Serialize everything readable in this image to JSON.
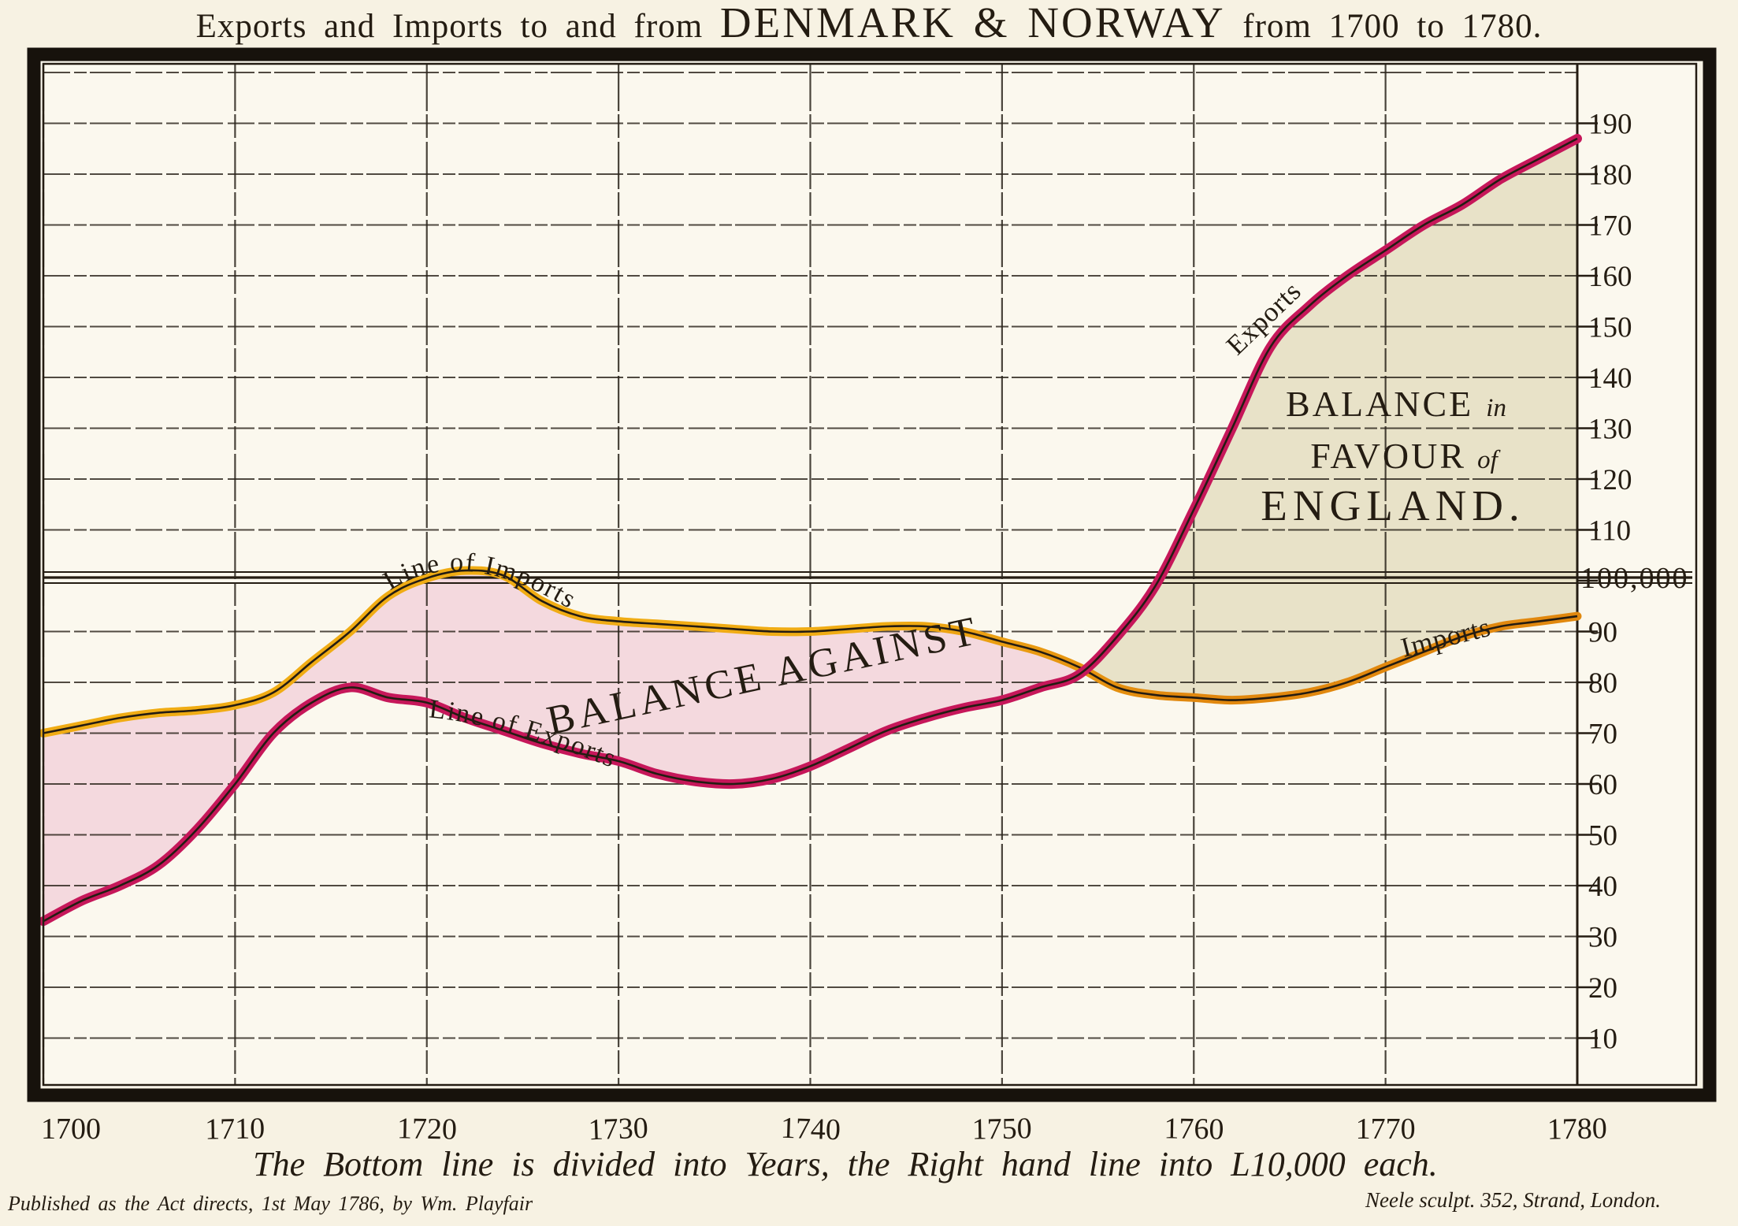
{
  "title": {
    "part1": "Exports and Imports to and from ",
    "emphasis": "DENMARK & NORWAY",
    "part2": " from 1700 to 1780."
  },
  "captions": {
    "bottom": "The Bottom line is divided into Years, the Right hand line into L10,000 each.",
    "published": "Published as the Act directs, 1st May 1786, by Wm. Playfair",
    "engraver": "Neele sculpt. 352, Strand, London."
  },
  "labels": {
    "line_of_imports": "Line of Imports",
    "line_of_exports": "Line of Exports",
    "balance_against": "BALANCE  AGAINST",
    "exports_curve": "Exports",
    "imports_curve": "Imports",
    "favour_line1": "BALANCE",
    "favour_line1_small": "in",
    "favour_line2": "FAVOUR",
    "favour_line2_small": "of",
    "favour_line3": "ENGLAND."
  },
  "colors": {
    "page_background": "#f7f2e3",
    "plot_background": "#fbf8ee",
    "ink": "#241c12",
    "imports_yellow": "#F0AC14",
    "imports_orange_right": "#E1880E",
    "exports_crimson": "#C6175A",
    "balance_against_fill": "#F4D9DE",
    "balance_favour_fill": "#E8E2C8"
  },
  "chart_data": {
    "type": "area",
    "title": "Exports and Imports to and from DENMARK & NORWAY from 1700 to 1780.",
    "xlabel": "Years (bottom line divided into years)",
    "ylabel": "L10,000 per division (right hand line)",
    "xlim": [
      1700,
      1780
    ],
    "ylim": [
      0,
      200
    ],
    "x_ticks": [
      1700,
      1710,
      1720,
      1730,
      1740,
      1750,
      1760,
      1770,
      1780
    ],
    "y_ticks": [
      10,
      20,
      30,
      40,
      50,
      60,
      70,
      80,
      90,
      100,
      110,
      120,
      130,
      140,
      150,
      160,
      170,
      180,
      190
    ],
    "y_special_value": 100,
    "y_special_label": "100,000",
    "grid": true,
    "legend_position": "labels-on-curves",
    "x": [
      1700,
      1702,
      1704,
      1706,
      1708,
      1710,
      1712,
      1714,
      1716,
      1718,
      1720,
      1722,
      1724,
      1726,
      1728,
      1730,
      1732,
      1734,
      1736,
      1738,
      1740,
      1742,
      1744,
      1746,
      1748,
      1750,
      1752,
      1754,
      1756,
      1758,
      1760,
      1762,
      1764,
      1766,
      1768,
      1770,
      1772,
      1774,
      1776,
      1778,
      1780
    ],
    "series": [
      {
        "name": "Line of Imports",
        "color": "#F0AC14",
        "color_right": "#E1880E",
        "values": [
          70,
          71.5,
          73,
          74,
          74.5,
          75.5,
          78,
          84,
          90,
          97,
          100.5,
          102,
          101,
          96,
          93,
          92,
          91.5,
          91,
          90.5,
          90,
          90,
          90.5,
          91,
          91,
          90,
          88,
          86,
          83,
          79,
          77.5,
          77,
          76.5,
          77,
          78,
          80,
          83,
          86,
          89,
          91,
          92,
          93
        ]
      },
      {
        "name": "Line of Exports",
        "color": "#C6175A",
        "values": [
          33,
          37,
          40,
          44,
          51,
          60,
          70,
          76,
          79,
          77,
          76,
          73,
          70.5,
          68,
          66,
          64.5,
          62,
          60.5,
          60,
          61,
          63.5,
          67,
          70.5,
          73,
          75,
          76.5,
          79,
          81.5,
          89,
          99,
          114,
          130,
          146,
          154,
          160,
          165,
          170,
          174,
          179,
          183,
          187
        ]
      }
    ],
    "regions": [
      {
        "label": "BALANCE AGAINST",
        "fill": "#F4D9DE",
        "where": "imports above exports, 1700 to ~1754"
      },
      {
        "label": "BALANCE in FAVOUR of ENGLAND.",
        "fill": "#E8E2C8",
        "where": "exports above imports, ~1754 to 1780"
      }
    ]
  }
}
